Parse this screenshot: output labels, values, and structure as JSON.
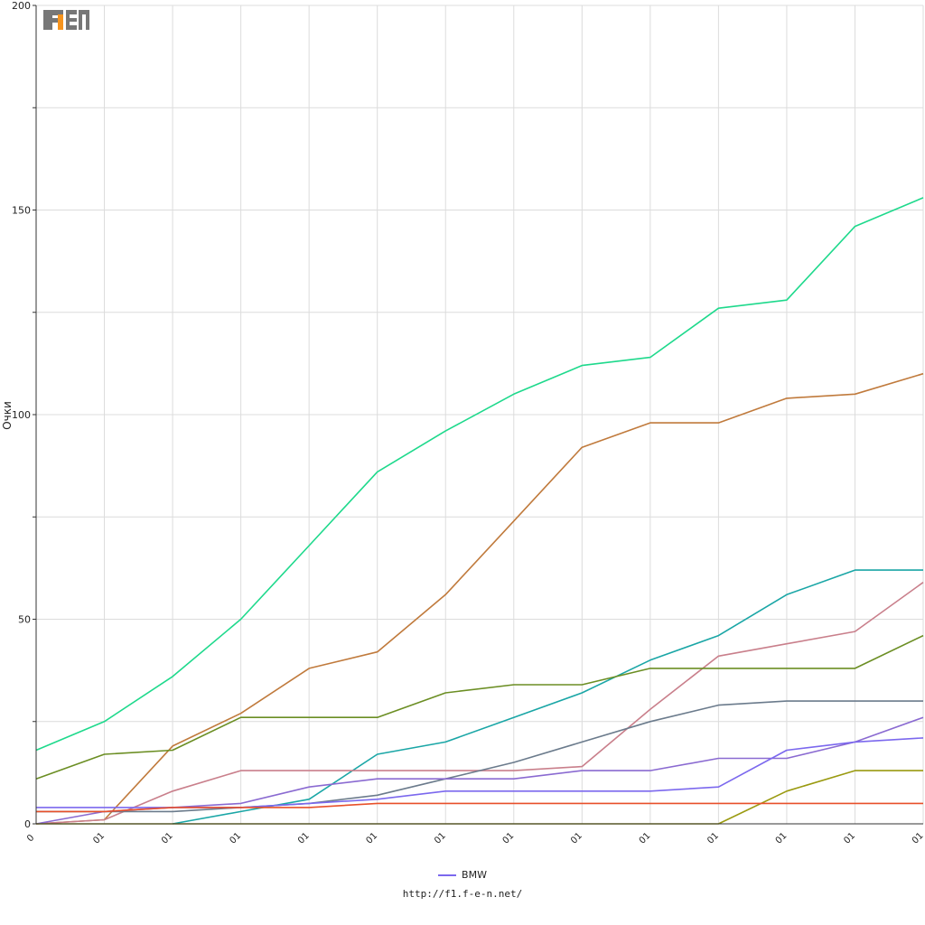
{
  "logo": {
    "text": "F1EN",
    "colors": {
      "body": "#777777",
      "accent": "#f7941d"
    }
  },
  "legend": {
    "label": "BMW",
    "color": "#7b68ee"
  },
  "source_url": "http://f1.f-e-n.net/",
  "chart_data": {
    "type": "line",
    "ylabel": "Очки",
    "ylim": [
      0,
      200
    ],
    "yticks": [
      0,
      50,
      100,
      150,
      200
    ],
    "xlim": [
      0,
      13
    ],
    "x_tick_labels": [
      "0",
      "01",
      "01",
      "01",
      "01",
      "01",
      "01",
      "01",
      "01",
      "01",
      "01",
      "01",
      "01",
      "01"
    ],
    "x": [
      0,
      1,
      2,
      3,
      4,
      5,
      6,
      7,
      8,
      9,
      10,
      11,
      12,
      13
    ],
    "grid": true,
    "series": [
      {
        "color": "#1ed98c",
        "values": [
          18,
          25,
          36,
          50,
          68,
          86,
          96,
          105,
          112,
          114,
          126,
          128,
          146,
          153
        ]
      },
      {
        "color": "#c07a3c",
        "values": [
          0,
          1,
          19,
          27,
          38,
          42,
          56,
          74,
          92,
          98,
          98,
          104,
          105,
          110
        ]
      },
      {
        "color": "#1aa6a6",
        "values": [
          null,
          null,
          0,
          3,
          6,
          17,
          20,
          26,
          32,
          40,
          46,
          56,
          62,
          62
        ]
      },
      {
        "color": "#c97f8b",
        "values": [
          0,
          1,
          8,
          13,
          13,
          13,
          13,
          13,
          14,
          28,
          41,
          44,
          47,
          59
        ]
      },
      {
        "color": "#6b8e23",
        "values": [
          11,
          17,
          18,
          26,
          26,
          26,
          32,
          34,
          34,
          38,
          38,
          38,
          38,
          46
        ]
      },
      {
        "color": "#6b7b8c",
        "values": [
          3,
          3,
          3,
          4,
          5,
          7,
          11,
          15,
          20,
          25,
          29,
          30,
          30,
          30
        ]
      },
      {
        "color": "#8a6ad1",
        "values": [
          0,
          3,
          4,
          5,
          9,
          11,
          11,
          11,
          13,
          13,
          16,
          16,
          20,
          26
        ]
      },
      {
        "color": "#7b68ee",
        "values": [
          4,
          4,
          4,
          4,
          5,
          6,
          8,
          8,
          8,
          8,
          9,
          18,
          20,
          21
        ]
      },
      {
        "color": "#9a9a10",
        "values": [
          0,
          0,
          0,
          0,
          0,
          0,
          0,
          0,
          0,
          0,
          0,
          8,
          13,
          13
        ]
      },
      {
        "color": "#e8502a",
        "values": [
          3,
          3,
          4,
          4,
          4,
          5,
          5,
          5,
          5,
          5,
          5,
          5,
          5,
          5
        ]
      }
    ]
  }
}
